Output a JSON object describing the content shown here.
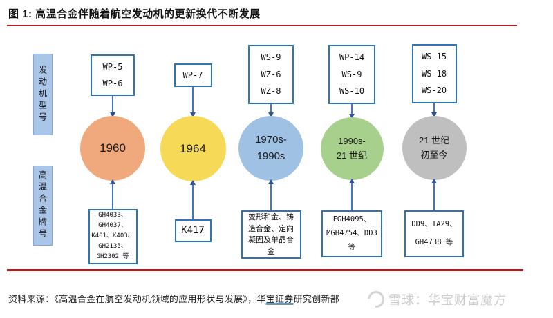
{
  "title": "图 1: 高温合金伴随着航空发动机的更新换代不断发展",
  "side_labels": [
    {
      "text": "发动机型号"
    },
    {
      "text": "高温合金牌号"
    }
  ],
  "columns": [
    {
      "top_lines": [
        "WP-5",
        "WP-6"
      ],
      "circle_lines": [
        "1960"
      ],
      "circle_color": "#f0a97c",
      "bottom_lines": [
        "GH4033、",
        "GH4037、",
        "K401、K403、",
        "GH2135、",
        "GH2302 等"
      ]
    },
    {
      "top_lines": [
        "WP-7"
      ],
      "circle_lines": [
        "1964"
      ],
      "circle_color": "#f7d958",
      "bottom_lines": [
        "K417"
      ]
    },
    {
      "top_lines": [
        "WS-9",
        "WZ-6",
        "WZ-8"
      ],
      "circle_lines": [
        "1970s-",
        "1990s"
      ],
      "circle_color": "#9fc1e3",
      "bottom_lines": [
        "变形和金、铸",
        "造合金、定向",
        "凝固及单晶合",
        "金"
      ]
    },
    {
      "top_lines": [
        "WP-14",
        "WS-9",
        "WS-10"
      ],
      "circle_lines": [
        "1990s-",
        "21 世纪"
      ],
      "circle_color": "#a8d08d",
      "bottom_lines": [
        "FGH4095、",
        "MGH4754、DD3",
        "等"
      ]
    },
    {
      "top_lines": [
        "WS-15",
        "WS-18",
        "WS-20"
      ],
      "circle_lines": [
        "21 世纪",
        "初至今"
      ],
      "circle_color": "#bfbfbf",
      "bottom_lines": [
        "DD9、TA29、",
        "GH4738 等"
      ]
    }
  ],
  "source": {
    "prefix": "资料来源：《高温合金在航空发动机领域的应用形状与发展》，华",
    "underlined": "宝证券",
    "suffix": "研究创新部"
  },
  "watermark": {
    "text": "雪球：华宝财富魔方"
  },
  "colors": {
    "rule_red": "#b01e23",
    "box_border_blue": "#2e75b6",
    "arrow_blue": "#4472c4",
    "side_label_bg": "#a9c5e8",
    "watermark_gray": "#c9c9c9"
  }
}
